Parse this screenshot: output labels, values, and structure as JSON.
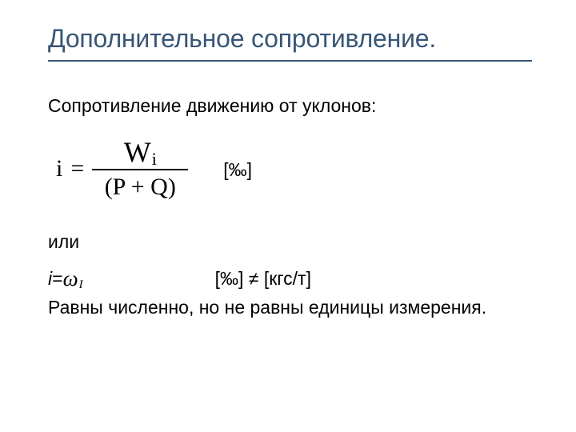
{
  "title": "Дополнительное сопротивление.",
  "lead": "Сопротивление движению от уклонов:",
  "formula": {
    "lhs": "i",
    "numerator_w": "W",
    "numerator_i": "i",
    "denominator": "(P + Q)",
    "unit": "[‰]"
  },
  "or_word": "или",
  "line2": {
    "ivar": "i",
    "eq": " = ",
    "omega": "ω",
    "sub": "I",
    "rhs": "[‰] ≠ [кгс/т]"
  },
  "last": "Равны численно, но не равны единицы измерения.",
  "colors": {
    "heading": "#385676",
    "text": "#000000",
    "bg": "#ffffff"
  },
  "fonts": {
    "body_family": "Verdana",
    "formula_family": "Times New Roman",
    "title_size_pt": 24,
    "body_size_pt": 17,
    "formula_size_pt": 22
  }
}
